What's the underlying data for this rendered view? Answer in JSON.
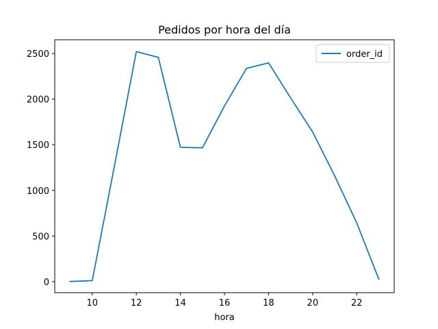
{
  "chart_data": {
    "type": "line",
    "title": "Pedidos por hora del día",
    "xlabel": "hora",
    "ylabel": "",
    "x": [
      9,
      10,
      11,
      12,
      13,
      14,
      15,
      16,
      17,
      18,
      19,
      20,
      21,
      22,
      23
    ],
    "series": [
      {
        "name": "order_id",
        "color": "#1f77b4",
        "values": [
          2,
          12,
          1260,
          2520,
          2456,
          1472,
          1466,
          1925,
          2337,
          2397,
          2014,
          1640,
          1160,
          645,
          28
        ]
      }
    ],
    "xlim": [
      8.3,
      23.7
    ],
    "ylim": [
      -120,
      2650
    ],
    "xticks": [
      10,
      12,
      14,
      16,
      18,
      20,
      22
    ],
    "yticks": [
      0,
      500,
      1000,
      1500,
      2000,
      2500
    ],
    "grid": false,
    "legend_position": "top-right"
  }
}
